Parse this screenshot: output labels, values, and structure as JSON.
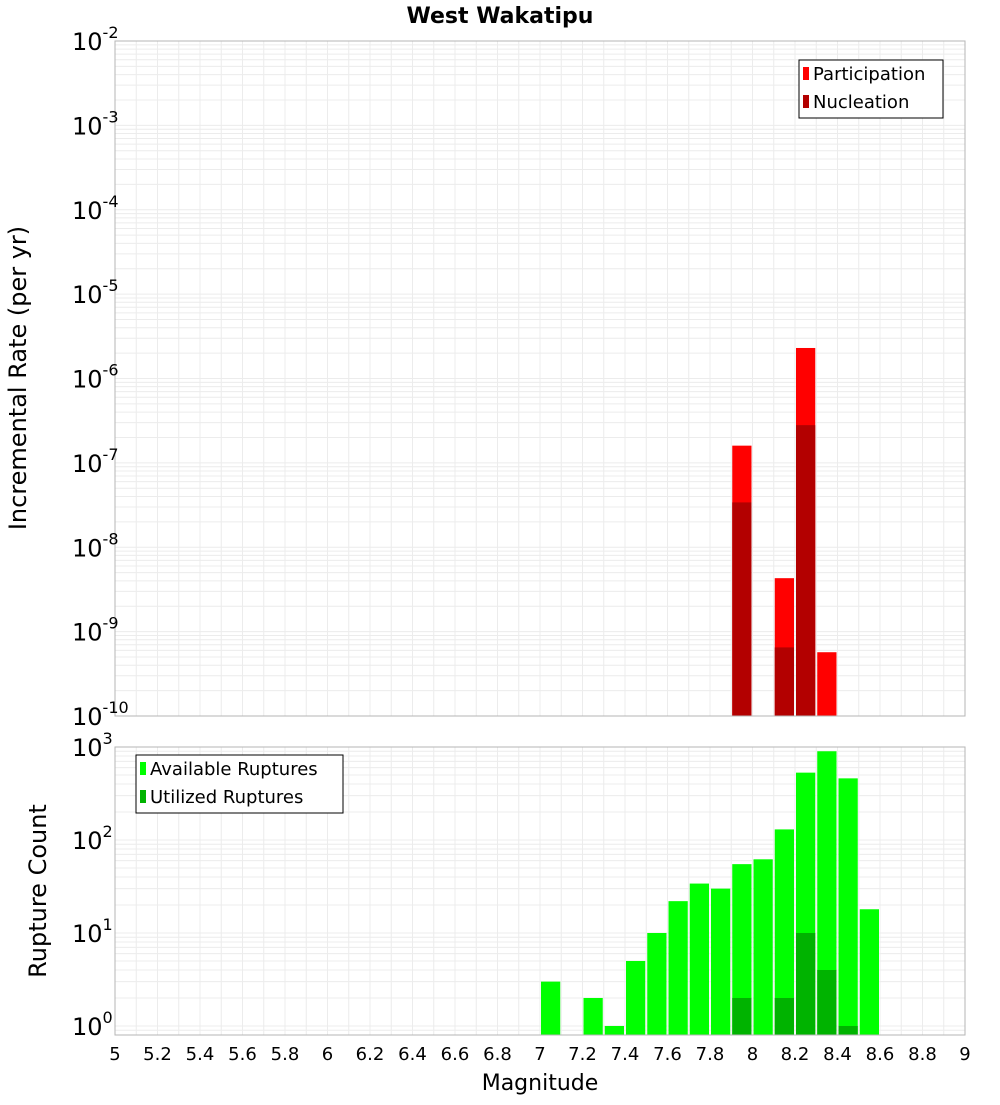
{
  "chart_data": [
    {
      "type": "bar",
      "title": "West Wakatipu",
      "ylabel": "Incremental Rate (per yr)",
      "xlabel": "",
      "yscale": "log",
      "ylim": [
        1e-10,
        0.01
      ],
      "xlim": [
        5,
        9
      ],
      "bar_width": 0.1,
      "grid": true,
      "legend_position": "top-right",
      "ytick_labels": [
        {
          "value": 0.01,
          "base": "10",
          "exp": "-2"
        },
        {
          "value": 0.001,
          "base": "10",
          "exp": "-3"
        },
        {
          "value": 0.0001,
          "base": "10",
          "exp": "-4"
        },
        {
          "value": 1e-05,
          "base": "10",
          "exp": "-5"
        },
        {
          "value": 1e-06,
          "base": "10",
          "exp": "-6"
        },
        {
          "value": 1e-07,
          "base": "10",
          "exp": "-7"
        },
        {
          "value": 1e-08,
          "base": "10",
          "exp": "-8"
        },
        {
          "value": 1e-09,
          "base": "10",
          "exp": "-9"
        },
        {
          "value": 1e-10,
          "base": "10",
          "exp": "-10"
        }
      ],
      "series": [
        {
          "name": "Participation",
          "color": "#ff0000",
          "points": [
            {
              "x": 7.95,
              "y": 1.6e-07
            },
            {
              "x": 8.15,
              "y": 4.3e-09
            },
            {
              "x": 8.25,
              "y": 2.3e-06
            },
            {
              "x": 8.35,
              "y": 5.7e-10
            }
          ]
        },
        {
          "name": "Nucleation",
          "color": "#b30000",
          "points": [
            {
              "x": 7.95,
              "y": 3.4e-08
            },
            {
              "x": 8.15,
              "y": 6.5e-10
            },
            {
              "x": 8.25,
              "y": 2.8e-07
            }
          ]
        }
      ]
    },
    {
      "type": "bar",
      "title": "",
      "ylabel": "Rupture Count",
      "xlabel": "Magnitude",
      "yscale": "log",
      "ylim": [
        0.8,
        1000
      ],
      "xlim": [
        5,
        9
      ],
      "bar_width": 0.1,
      "grid": true,
      "legend_position": "top-left",
      "ytick_labels": [
        {
          "value": 1000,
          "base": "10",
          "exp": "3"
        },
        {
          "value": 100,
          "base": "10",
          "exp": "2"
        },
        {
          "value": 10,
          "base": "10",
          "exp": "1"
        },
        {
          "value": 1,
          "base": "10",
          "exp": "0"
        }
      ],
      "xtick_labels": [
        "5",
        "5.2",
        "5.4",
        "5.6",
        "5.8",
        "6",
        "6.2",
        "6.4",
        "6.6",
        "6.8",
        "7",
        "7.2",
        "7.4",
        "7.6",
        "7.8",
        "8",
        "8.2",
        "8.4",
        "8.6",
        "8.8",
        "9"
      ],
      "series": [
        {
          "name": "Available Ruptures",
          "color": "#00ff00",
          "points": [
            {
              "x": 7.05,
              "y": 3
            },
            {
              "x": 7.25,
              "y": 2
            },
            {
              "x": 7.35,
              "y": 1
            },
            {
              "x": 7.45,
              "y": 5
            },
            {
              "x": 7.55,
              "y": 10
            },
            {
              "x": 7.65,
              "y": 22
            },
            {
              "x": 7.75,
              "y": 34
            },
            {
              "x": 7.85,
              "y": 30
            },
            {
              "x": 7.95,
              "y": 55
            },
            {
              "x": 8.05,
              "y": 62
            },
            {
              "x": 8.15,
              "y": 130
            },
            {
              "x": 8.25,
              "y": 530
            },
            {
              "x": 8.35,
              "y": 900
            },
            {
              "x": 8.45,
              "y": 460
            },
            {
              "x": 8.55,
              "y": 18
            }
          ]
        },
        {
          "name": "Utilized Ruptures",
          "color": "#00b300",
          "points": [
            {
              "x": 7.95,
              "y": 2
            },
            {
              "x": 8.15,
              "y": 2
            },
            {
              "x": 8.25,
              "y": 10
            },
            {
              "x": 8.35,
              "y": 4
            },
            {
              "x": 8.45,
              "y": 1
            }
          ]
        }
      ]
    }
  ]
}
